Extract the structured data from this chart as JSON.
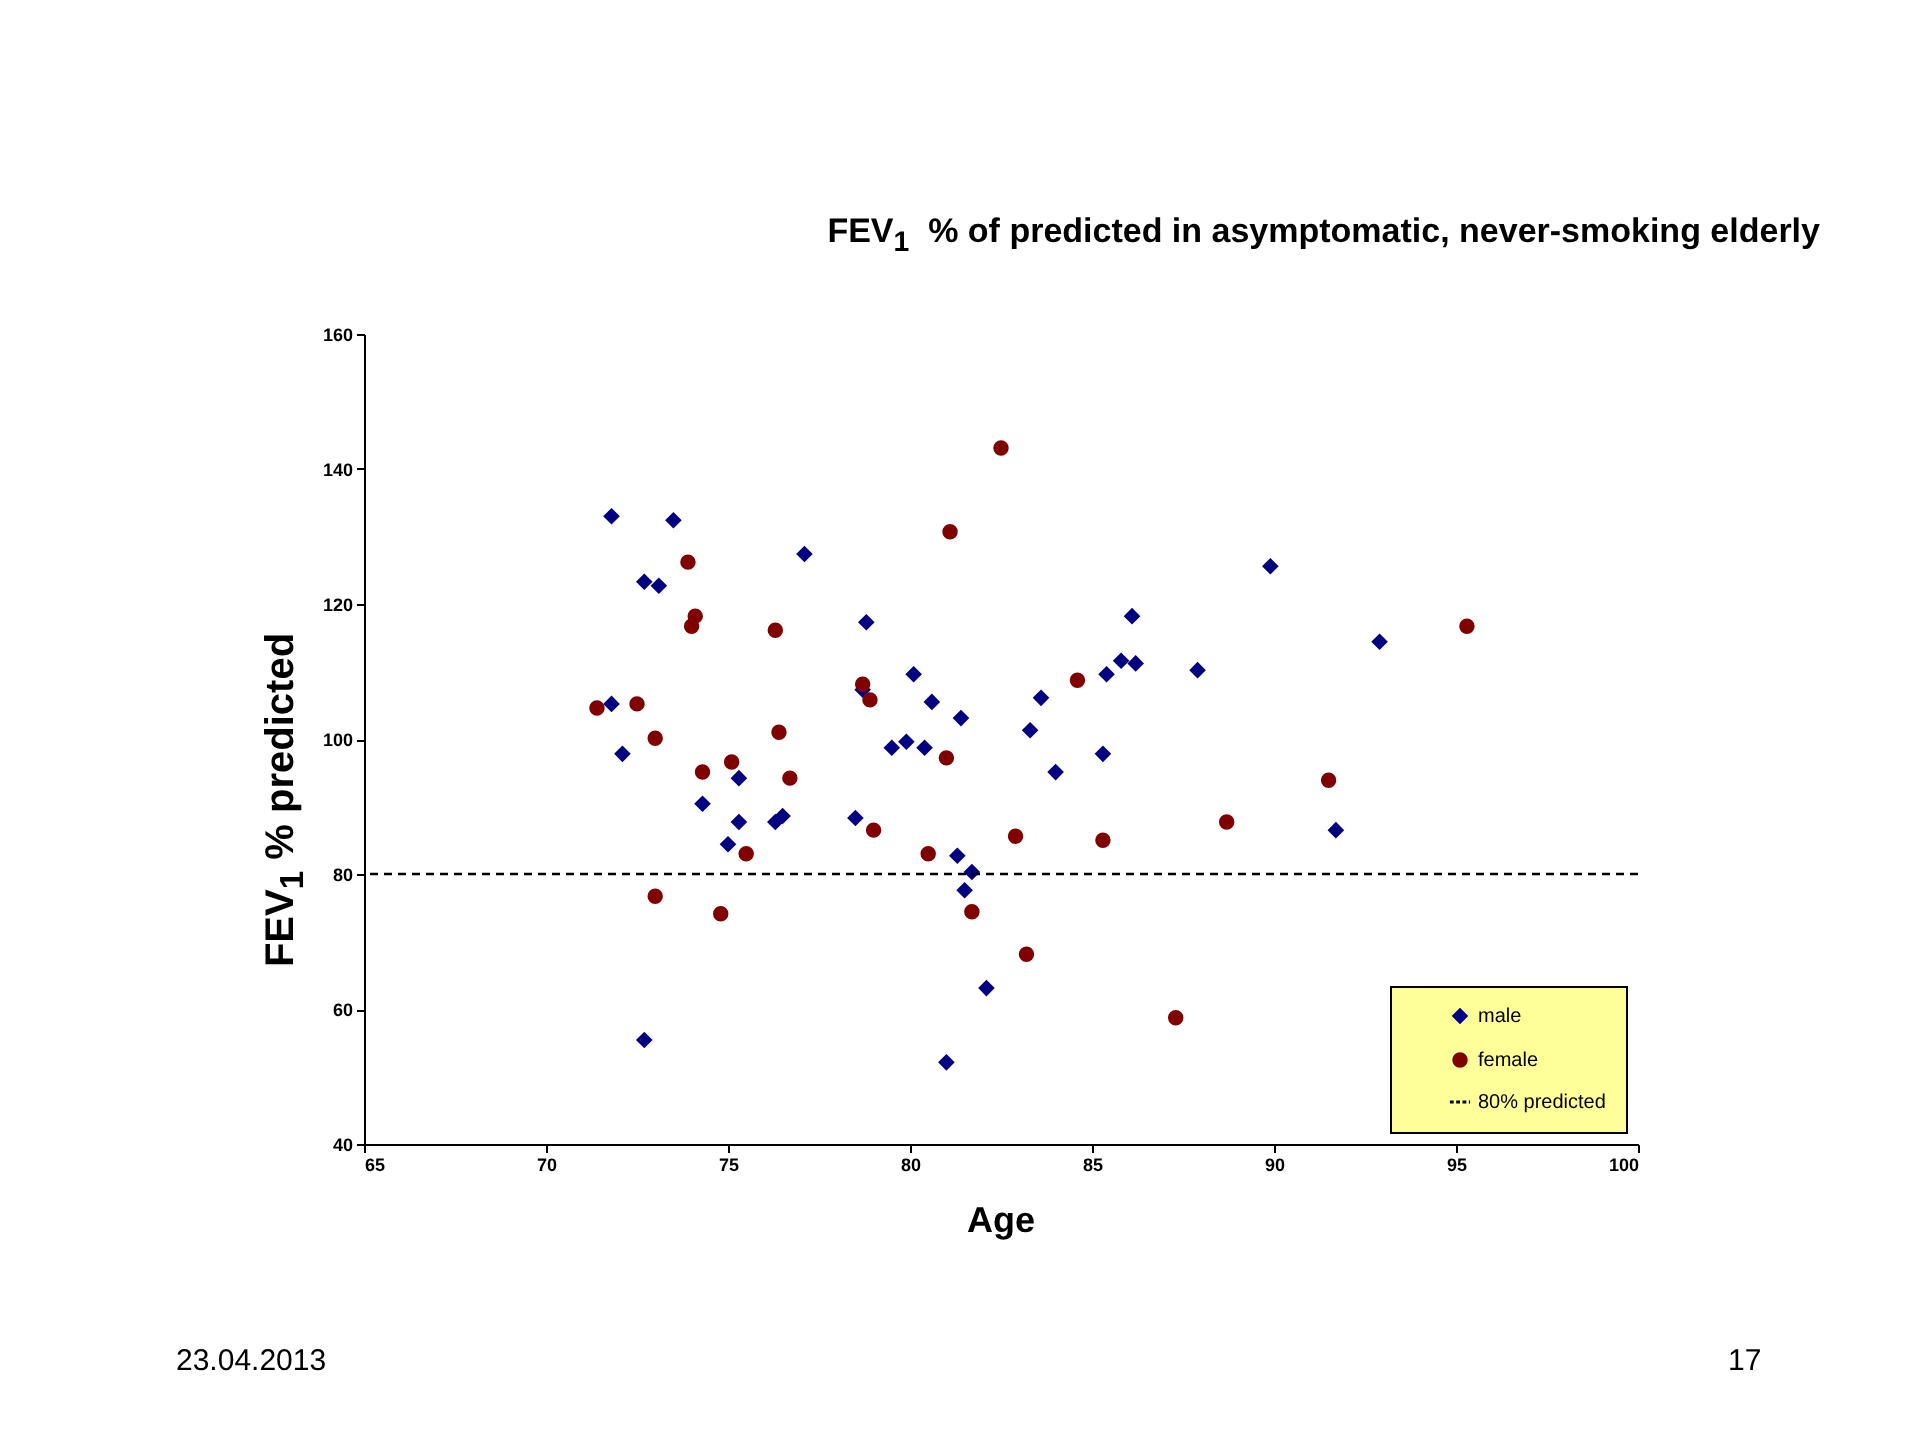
{
  "chart_data": {
    "type": "scatter",
    "title": "FEV$_{1}$  % of predicted in asymptomatic, never-smoking elderly",
    "xlabel": "Age",
    "ylabel": "FEV$_{1}$ % predicted",
    "xlim": [
      65,
      100
    ],
    "xticks": [
      65,
      70,
      75,
      80,
      85,
      90,
      95,
      100
    ],
    "ylim": [
      40,
      160
    ],
    "yticks": [
      40,
      60,
      80,
      100,
      120,
      140,
      160
    ],
    "grid": false,
    "legend": "bottom right",
    "series": [
      {
        "name": "male",
        "color": "#000080",
        "marker": "diamond",
        "x": [
          71.8,
          73.5,
          72.7,
          73.1,
          77.1,
          71.8,
          72.1,
          72.7,
          74.3,
          75.3,
          75.3,
          75.0,
          76.3,
          76.5,
          78.8,
          78.5,
          78.7,
          80.1,
          80.6,
          79.5,
          79.9,
          80.4,
          81.4,
          81.3,
          81.7,
          81.5,
          82.1,
          81.0,
          83.6,
          83.3,
          84.0,
          85.3,
          85.4,
          85.8,
          86.2,
          86.1,
          87.9,
          89.9,
          91.7,
          92.9
        ],
        "values": [
          133.0,
          132.4,
          123.3,
          122.7,
          127.4,
          105.2,
          97.8,
          55.4,
          90.4,
          94.2,
          87.7,
          84.4,
          87.7,
          88.6,
          117.3,
          88.3,
          107.3,
          109.6,
          105.5,
          98.7,
          99.6,
          98.7,
          103.1,
          82.7,
          80.3,
          77.6,
          63.1,
          52.1,
          106.1,
          101.3,
          95.1,
          97.8,
          109.6,
          111.6,
          111.2,
          118.2,
          110.2,
          125.6,
          86.5,
          114.4
        ]
      },
      {
        "name": "female",
        "color": "#800000",
        "marker": "circle",
        "x": [
          71.4,
          72.5,
          73.0,
          73.0,
          73.9,
          74.1,
          74.0,
          74.3,
          75.1,
          75.5,
          74.8,
          76.3,
          76.4,
          76.7,
          78.7,
          78.9,
          79.0,
          80.5,
          81.0,
          81.1,
          82.5,
          82.9,
          81.7,
          83.2,
          84.6,
          85.3,
          87.3,
          88.7,
          91.5,
          95.3
        ],
        "values": [
          104.6,
          105.2,
          100.1,
          76.7,
          126.2,
          118.2,
          116.7,
          95.1,
          96.6,
          83.0,
          74.1,
          116.1,
          101.0,
          94.2,
          108.1,
          105.8,
          86.5,
          83.0,
          97.2,
          130.7,
          143.1,
          85.6,
          74.4,
          68.1,
          108.7,
          85.0,
          58.7,
          87.7,
          93.9,
          116.7
        ]
      }
    ],
    "ref_lines": [
      {
        "axis": "y",
        "value": 80,
        "label": "80% predicted",
        "color": "#000000",
        "line_style": "dashed"
      }
    ],
    "annotations": [
      "23.04.2013",
      "17"
    ]
  }
}
